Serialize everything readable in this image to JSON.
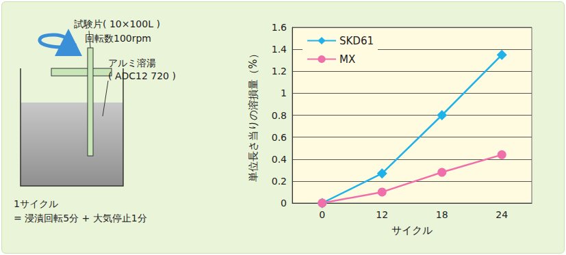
{
  "diagram": {
    "specimen_label": "試験片( 10×100L )",
    "rotation_label": "回転数100rpm",
    "melt_label": "アルミ溶湯",
    "melt_spec": "( ADC12 720 )",
    "cycle_title": "1サイクル",
    "cycle_definition": "= 浸漬回転5分 + 大気停止1分"
  },
  "chart_data": {
    "type": "line",
    "x_label": "サイクル",
    "y_label": "単位長さ当りの溶損量（%）",
    "categories": [
      "0",
      "12",
      "18",
      "24"
    ],
    "series": [
      {
        "name": "SKD61",
        "color": "#1fb2e8",
        "marker": "diamond",
        "line_style": "solid",
        "values": [
          0,
          0.27,
          0.8,
          1.35
        ]
      },
      {
        "name": "MX",
        "color": "#f06ea9",
        "marker": "circle",
        "line_style": "solid",
        "values": [
          0,
          0.1,
          0.28,
          0.44
        ]
      }
    ],
    "ylim": [
      0,
      1.6
    ],
    "yticks": [
      0,
      0.2,
      0.4,
      0.6,
      0.8,
      1,
      1.2,
      1.4,
      1.6
    ],
    "grid": true,
    "legend": "upper left"
  }
}
